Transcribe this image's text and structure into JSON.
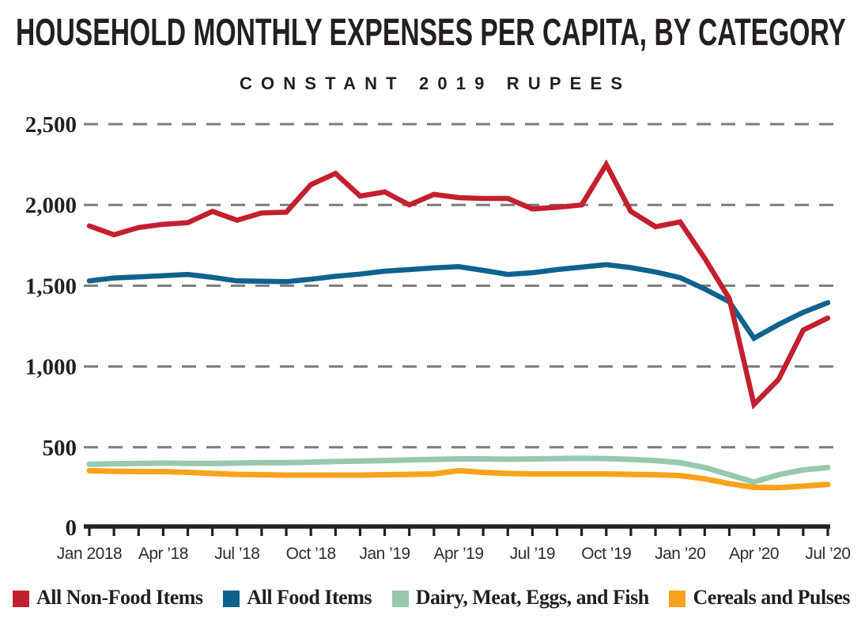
{
  "header": {
    "title": "HOUSEHOLD MONTHLY EXPENSES PER CAPITA, BY CATEGORY",
    "subtitle": "CONSTANT 2019 RUPEES"
  },
  "chart_data": {
    "type": "line",
    "title": "HOUSEHOLD MONTHLY EXPENSES PER CAPITA, BY CATEGORY",
    "subtitle": "CONSTANT 2019 RUPEES",
    "unit": "constant 2019 rupees per capita per month",
    "grid": "dashed horizontal",
    "legend_position": "bottom",
    "x_axis": {
      "months": [
        "Jan 2018",
        "Feb 2018",
        "Mar 2018",
        "Apr 2018",
        "May 2018",
        "Jun 2018",
        "Jul 2018",
        "Aug 2018",
        "Sep 2018",
        "Oct 2018",
        "Nov 2018",
        "Dec 2018",
        "Jan 2019",
        "Feb 2019",
        "Mar 2019",
        "Apr 2019",
        "May 2019",
        "Jun 2019",
        "Jul 2019",
        "Aug 2019",
        "Sep 2019",
        "Oct 2019",
        "Nov 2019",
        "Dec 2019",
        "Jan 2020",
        "Feb 2020",
        "Mar 2020",
        "Apr 2020",
        "May 2020",
        "Jun 2020",
        "Jul 2020"
      ],
      "tick_labels": [
        "Jan 2018",
        "Apr ’18",
        "Jul ’18",
        "Oct ’18",
        "Jan ’19",
        "Apr ’19",
        "Jul ’19",
        "Oct ’19",
        "Jan ’20",
        "Apr ’20",
        "Jul ’20"
      ],
      "tick_label_month_indexes": [
        0,
        3,
        6,
        9,
        12,
        15,
        18,
        21,
        24,
        27,
        30
      ]
    },
    "y_axis": {
      "range": [
        0,
        2500
      ],
      "ticks": [
        0,
        500,
        1000,
        1500,
        2000,
        2500
      ],
      "tick_labels": [
        "0",
        "500",
        "1,000",
        "1,500",
        "2,000",
        "2,500"
      ]
    },
    "series": [
      {
        "name": "All Non-Food Items",
        "color": "#C3202F",
        "width": 6.5,
        "values": [
          1870,
          1815,
          1860,
          1880,
          1890,
          1960,
          1905,
          1950,
          1955,
          2125,
          2195,
          2055,
          2080,
          2000,
          2065,
          2045,
          2040,
          2040,
          1975,
          1985,
          2000,
          2250,
          1960,
          1865,
          1895,
          1670,
          1420,
          765,
          920,
          1225,
          1300
        ]
      },
      {
        "name": "All Food Items",
        "color": "#0F628E",
        "width": 6.5,
        "values": [
          1530,
          1548,
          1555,
          1562,
          1570,
          1552,
          1530,
          1528,
          1525,
          1540,
          1558,
          1572,
          1590,
          1600,
          1610,
          1618,
          1595,
          1570,
          1580,
          1600,
          1615,
          1630,
          1612,
          1585,
          1550,
          1480,
          1400,
          1175,
          1260,
          1335,
          1395
        ]
      },
      {
        "name": "Dairy, Meat, Eggs, and Fish",
        "color": "#97C9AE",
        "width": 7,
        "values": [
          395,
          398,
          400,
          402,
          400,
          400,
          402,
          405,
          405,
          408,
          412,
          415,
          418,
          422,
          425,
          428,
          428,
          426,
          428,
          430,
          432,
          430,
          425,
          418,
          405,
          375,
          330,
          285,
          330,
          360,
          375
        ]
      },
      {
        "name": "Cereals and Pulses",
        "color": "#F9A21B",
        "width": 7,
        "values": [
          355,
          352,
          350,
          350,
          345,
          338,
          332,
          330,
          328,
          328,
          328,
          328,
          330,
          332,
          335,
          355,
          345,
          338,
          335,
          335,
          335,
          335,
          332,
          330,
          325,
          305,
          275,
          252,
          250,
          260,
          270
        ]
      }
    ],
    "colors": {
      "text": "#231F20",
      "axis": "#231F20",
      "gridline": "#7C7C7C",
      "tick_label": "#2D2D2D"
    }
  }
}
